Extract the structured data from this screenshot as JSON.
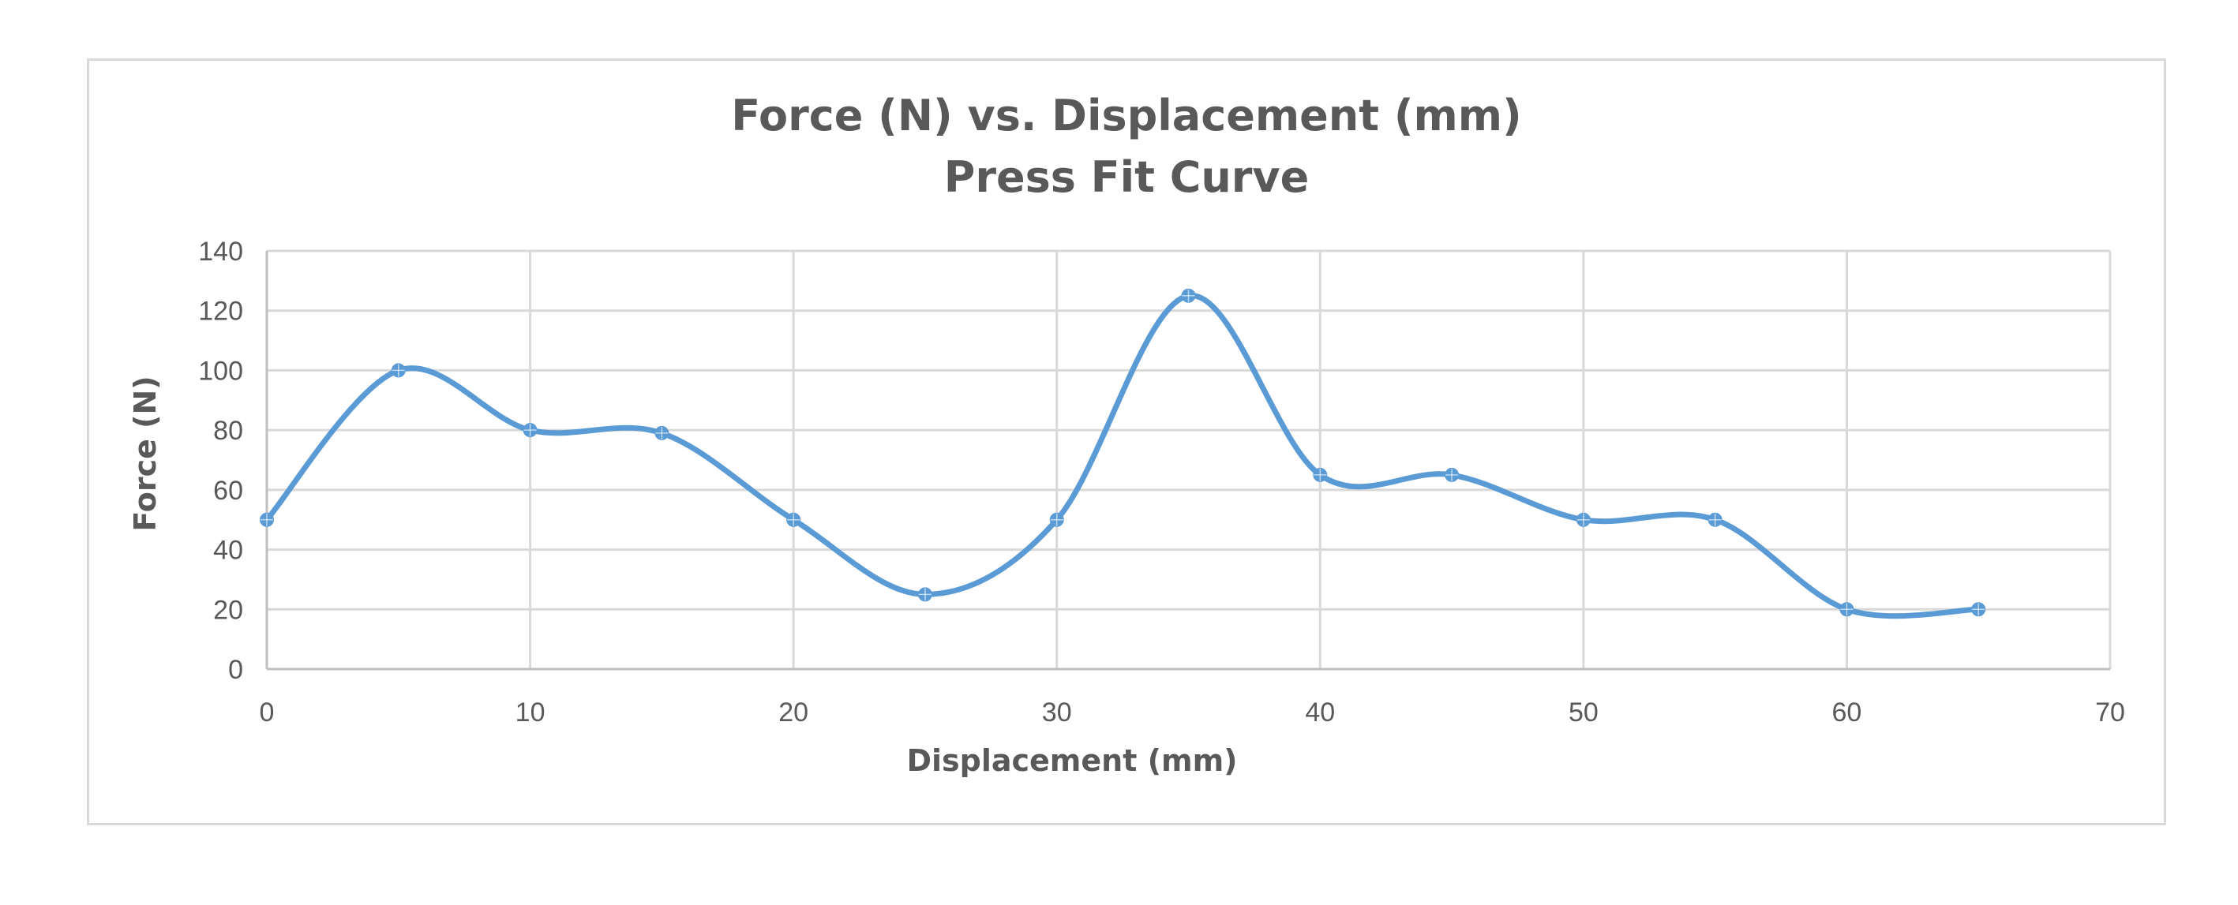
{
  "chart_data": {
    "type": "scatter",
    "title": "Force (N) vs. Displacement (mm)",
    "subtitle": "Press Fit Curve",
    "xlabel": "Displacement (mm)",
    "ylabel": "Force (N)",
    "xlim": [
      0,
      70
    ],
    "ylim": [
      0,
      140
    ],
    "xticks": [
      0,
      10,
      20,
      30,
      40,
      50,
      60,
      70
    ],
    "yticks": [
      0,
      20,
      40,
      60,
      80,
      100,
      120,
      140
    ],
    "grid": true,
    "smooth": true,
    "legend": "none",
    "series": [
      {
        "color": "#5b9bd5",
        "x": [
          0,
          5,
          10,
          15,
          20,
          25,
          30,
          35,
          40,
          45,
          50,
          55,
          60,
          65
        ],
        "y": [
          50,
          100,
          80,
          79,
          50,
          25,
          50,
          125,
          65,
          65,
          50,
          50,
          20,
          20
        ]
      }
    ]
  }
}
